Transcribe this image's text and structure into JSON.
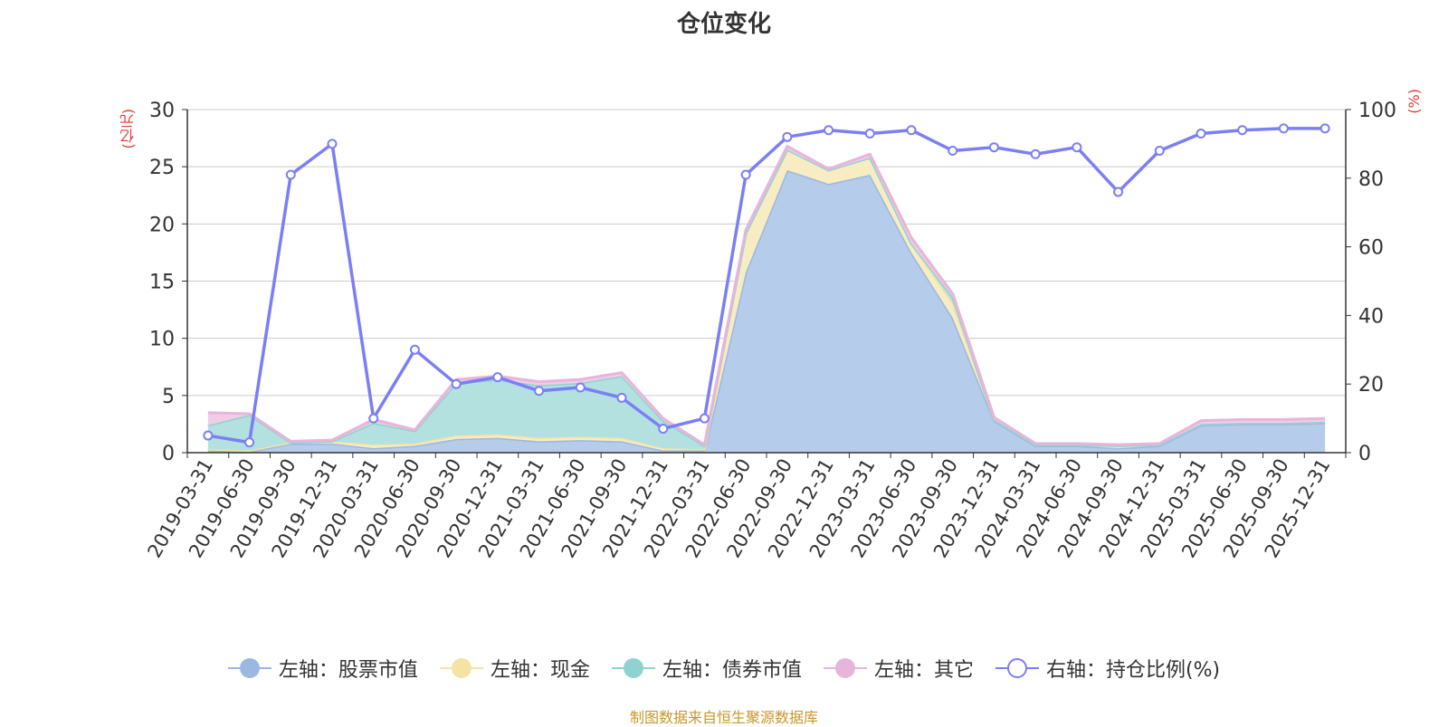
{
  "chart_data": {
    "type": "area",
    "title": "仓位变化",
    "left_axis_label": "(亿元)",
    "right_axis_label": "(%)",
    "left_ylim": [
      0,
      30
    ],
    "left_yticks": [
      0,
      5,
      10,
      15,
      20,
      25,
      30
    ],
    "right_ylim": [
      0,
      100
    ],
    "right_yticks": [
      0,
      20,
      40,
      60,
      80,
      100
    ],
    "categories": [
      "2019-03-31",
      "2019-06-30",
      "2019-09-30",
      "2019-12-31",
      "2020-03-31",
      "2020-06-30",
      "2020-09-30",
      "2020-12-31",
      "2021-03-31",
      "2021-06-30",
      "2021-09-30",
      "2021-12-31",
      "2022-03-31",
      "2022-06-30",
      "2022-09-30",
      "2022-12-31",
      "2023-03-31",
      "2023-06-30",
      "2023-09-30",
      "2023-12-31",
      "2024-03-31",
      "2024-06-30",
      "2024-09-30",
      "2024-12-31",
      "2025-03-31",
      "2025-06-30",
      "2025-09-30",
      "2025-12-31"
    ],
    "stacked_series": [
      {
        "name": "左轴：股票市值",
        "color": "#9bb8e1",
        "fill": "#b6cceb",
        "values": [
          0.2,
          0.1,
          0.8,
          0.8,
          0.4,
          0.6,
          1.2,
          1.3,
          1.0,
          1.1,
          1.0,
          0.2,
          0.2,
          15.8,
          24.7,
          23.5,
          24.3,
          17.5,
          11.8,
          2.8,
          0.6,
          0.6,
          0.4,
          0.6,
          2.4,
          2.5,
          2.5,
          2.6
        ]
      },
      {
        "name": "左轴：现金",
        "color": "#f5e3a3",
        "fill": "#f8ecc2",
        "values": [
          0.1,
          0.1,
          0.1,
          0.2,
          0.3,
          0.2,
          0.3,
          0.3,
          0.3,
          0.3,
          0.3,
          0.2,
          0.1,
          3.4,
          1.8,
          1.2,
          1.5,
          0.8,
          1.3,
          0.1,
          0.1,
          0.1,
          0.2,
          0.1,
          0.1,
          0.1,
          0.1,
          0.1
        ]
      },
      {
        "name": "左轴：债券市值",
        "color": "#8fd3d1",
        "fill": "#b3e1df",
        "values": [
          2.1,
          3.1,
          0.0,
          0.0,
          1.9,
          1.1,
          4.6,
          4.8,
          4.6,
          4.7,
          5.4,
          2.4,
          0.3,
          0.0,
          0.0,
          0.0,
          0.0,
          0.0,
          0.5,
          0.0,
          0.0,
          0.0,
          0.0,
          0.0,
          0.0,
          0.0,
          0.0,
          0.0
        ]
      },
      {
        "name": "左轴：其它",
        "color": "#e8b5da",
        "fill": "#f0cde6",
        "values": [
          1.1,
          0.1,
          0.1,
          0.1,
          0.3,
          0.1,
          0.3,
          0.3,
          0.3,
          0.3,
          0.3,
          0.2,
          0.1,
          0.3,
          0.3,
          0.1,
          0.3,
          0.5,
          0.3,
          0.2,
          0.1,
          0.1,
          0.1,
          0.1,
          0.3,
          0.3,
          0.3,
          0.3
        ]
      }
    ],
    "line_series": {
      "name": "右轴：持仓比例(%)",
      "color": "#7b7ff5",
      "values": [
        5,
        3,
        81,
        90,
        10,
        30,
        20,
        22,
        18,
        19,
        16,
        7,
        10,
        81,
        92,
        94,
        93,
        94,
        88,
        89,
        87,
        89,
        76,
        88,
        93,
        94,
        94.5,
        94.5
      ]
    }
  },
  "legend": [
    {
      "label": "左轴：股票市值",
      "style": "filled",
      "color": "#9bb8e1"
    },
    {
      "label": "左轴：现金",
      "style": "filled",
      "color": "#f5e3a3"
    },
    {
      "label": "左轴：债券市值",
      "style": "filled",
      "color": "#8fd3d1"
    },
    {
      "label": "左轴：其它",
      "style": "filled",
      "color": "#e8b5da"
    },
    {
      "label": "右轴：持仓比例(%)",
      "style": "hollow",
      "color": "#7b7ff5"
    }
  ],
  "colors": {
    "axis_unit": "#e53935",
    "footer": "#c9962a",
    "grid": "#cccccc",
    "axis": "#333333"
  },
  "footer": "制图数据来自恒生聚源数据库"
}
